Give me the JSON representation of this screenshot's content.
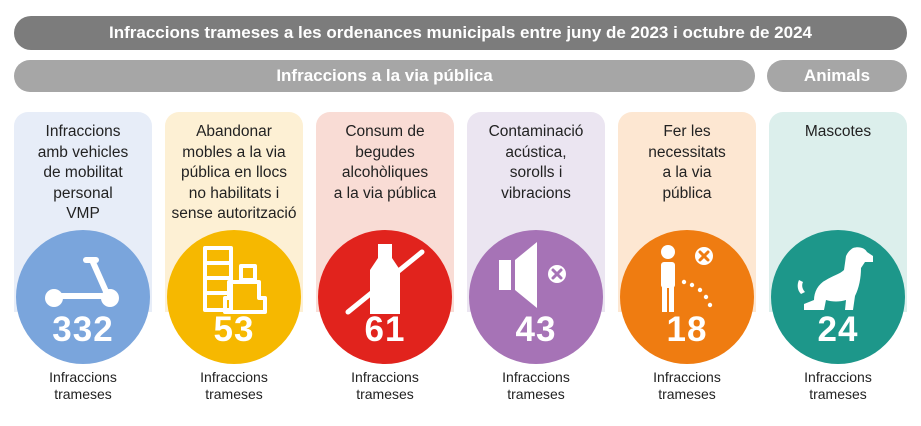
{
  "header": {
    "title": "Infraccions trameses a les ordenances municipals entre juny de 2023 i octubre de 2024"
  },
  "groups": {
    "via_publica": "Infraccions a la via pública",
    "animals": "Animals"
  },
  "cards": [
    {
      "description": "Infraccions\namb vehicles\nde mobilitat\npersonal\nVMP",
      "value": "332",
      "caption": "Infraccions\ntrameses",
      "icon": "scooter-icon",
      "bg": "#e7edf8",
      "circle": "#7aa5dc"
    },
    {
      "description": "Abandonar\nmobles a la via\npública en llocs\nno habilitats i\nsense autorització",
      "value": "53",
      "caption": "Infraccions\ntrameses",
      "icon": "furniture-icon",
      "bg": "#fdf0d4",
      "circle": "#f6b800"
    },
    {
      "description": "Consum de\nbegudes\nalcohòliques\na la via pública",
      "value": "61",
      "caption": "Infraccions\ntrameses",
      "icon": "no-bottle-icon",
      "bg": "#f9dcd5",
      "circle": "#e1231d"
    },
    {
      "description": "Contaminació\nacústica,\nsorolls i\nvibracions",
      "value": "43",
      "caption": "Infraccions\ntrameses",
      "icon": "muted-speaker-icon",
      "bg": "#ebe5f1",
      "circle": "#a673b6"
    },
    {
      "description": "Fer les\nnecessitats\na la via\npública",
      "value": "18",
      "caption": "Infraccions\ntrameses",
      "icon": "urinating-person-icon",
      "bg": "#fde7d2",
      "circle": "#ef7c11"
    },
    {
      "description": "Mascotes",
      "value": "24",
      "caption": "Infraccions\ntrameses",
      "icon": "dog-icon",
      "bg": "#dcefec",
      "circle": "#1d978a"
    }
  ]
}
